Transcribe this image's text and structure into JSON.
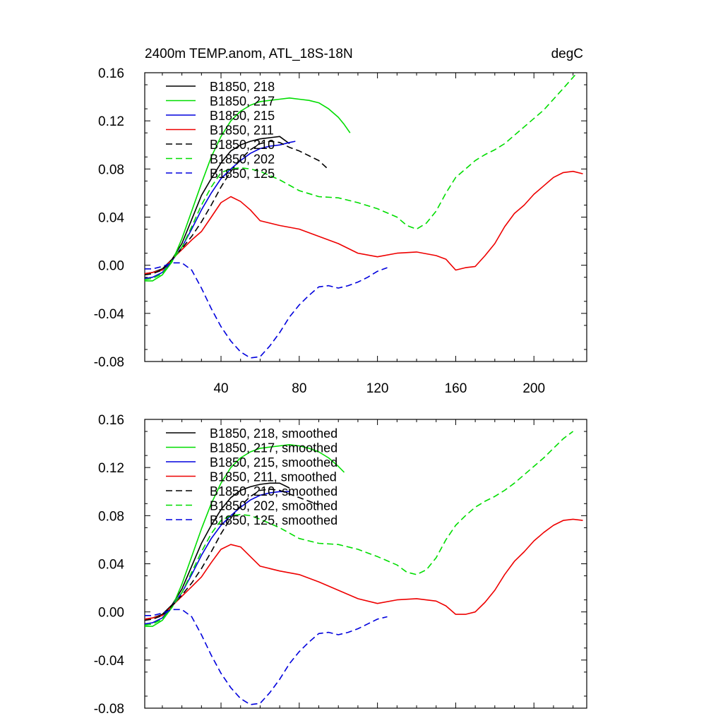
{
  "chart_data": [
    {
      "type": "line",
      "title": "2400m TEMP.anom, ATL_18S-18N",
      "units": "degC",
      "xlabel": "",
      "ylabel": "",
      "xlim": [
        1,
        227
      ],
      "ylim": [
        -0.08,
        0.16
      ],
      "xticks": [
        "40",
        "80",
        "120",
        "160",
        "200"
      ],
      "yticks": [
        "-0.08",
        "-0.04",
        "0.00",
        "0.04",
        "0.08",
        "0.12",
        "0.16"
      ],
      "grid": false,
      "legend_position": "top-left",
      "series": [
        {
          "name": "B1850, 218",
          "color": "#000000",
          "dash": "solid",
          "x": [
            1,
            5,
            10,
            15,
            20,
            25,
            30,
            35,
            40,
            45,
            50,
            55,
            60,
            65,
            70,
            75
          ],
          "y": [
            -0.007,
            -0.006,
            -0.003,
            0.005,
            0.018,
            0.038,
            0.058,
            0.072,
            0.085,
            0.095,
            0.1,
            0.103,
            0.105,
            0.106,
            0.107,
            0.101
          ]
        },
        {
          "name": "B1850, 217",
          "color": "#00dd00",
          "dash": "solid",
          "x": [
            1,
            5,
            10,
            15,
            20,
            25,
            30,
            35,
            40,
            45,
            50,
            55,
            60,
            65,
            70,
            75,
            80,
            85,
            90,
            95,
            100,
            103,
            106
          ],
          "y": [
            -0.013,
            -0.013,
            -0.008,
            0.003,
            0.022,
            0.045,
            0.068,
            0.09,
            0.107,
            0.12,
            0.128,
            0.133,
            0.136,
            0.137,
            0.138,
            0.139,
            0.138,
            0.137,
            0.135,
            0.13,
            0.123,
            0.117,
            0.11
          ]
        },
        {
          "name": "B1850, 215",
          "color": "#0000dd",
          "dash": "solid",
          "x": [
            1,
            5,
            10,
            15,
            20,
            25,
            30,
            35,
            40,
            45,
            50,
            55,
            60,
            65,
            70,
            75,
            78
          ],
          "y": [
            -0.011,
            -0.01,
            -0.006,
            0.004,
            0.015,
            0.03,
            0.046,
            0.06,
            0.072,
            0.08,
            0.087,
            0.093,
            0.097,
            0.099,
            0.1,
            0.102,
            0.103
          ]
        },
        {
          "name": "B1850, 211",
          "color": "#ee0000",
          "dash": "solid",
          "x": [
            1,
            5,
            10,
            15,
            20,
            25,
            30,
            35,
            40,
            45,
            50,
            55,
            60,
            70,
            80,
            90,
            100,
            110,
            120,
            130,
            140,
            150,
            155,
            160,
            165,
            170,
            175,
            180,
            185,
            190,
            195,
            200,
            205,
            210,
            215,
            220,
            225
          ],
          "y": [
            -0.007,
            -0.006,
            -0.004,
            0.005,
            0.013,
            0.021,
            0.028,
            0.04,
            0.052,
            0.057,
            0.053,
            0.046,
            0.037,
            0.033,
            0.03,
            0.024,
            0.018,
            0.01,
            0.007,
            0.01,
            0.011,
            0.008,
            0.005,
            -0.004,
            -0.002,
            -0.001,
            0.008,
            0.018,
            0.032,
            0.043,
            0.05,
            0.059,
            0.066,
            0.073,
            0.077,
            0.078,
            0.076
          ]
        },
        {
          "name": "B1850, 210",
          "color": "#000000",
          "dash": "dashed",
          "x": [
            1,
            5,
            10,
            15,
            20,
            25,
            30,
            35,
            40,
            45,
            50,
            55,
            60,
            65,
            70,
            75,
            80,
            85,
            90,
            94
          ],
          "y": [
            -0.008,
            -0.007,
            -0.004,
            0.005,
            0.014,
            0.024,
            0.036,
            0.05,
            0.065,
            0.078,
            0.088,
            0.096,
            0.101,
            0.103,
            0.102,
            0.098,
            0.095,
            0.091,
            0.087,
            0.081
          ]
        },
        {
          "name": "B1850, 202",
          "color": "#00dd00",
          "dash": "dashed",
          "x": [
            1,
            5,
            10,
            15,
            20,
            25,
            30,
            35,
            40,
            45,
            50,
            55,
            60,
            70,
            80,
            90,
            100,
            110,
            120,
            130,
            135,
            140,
            145,
            150,
            155,
            160,
            165,
            170,
            175,
            180,
            185,
            190,
            195,
            200,
            205,
            210,
            215,
            221
          ],
          "y": [
            -0.012,
            -0.011,
            -0.007,
            0.004,
            0.015,
            0.032,
            0.05,
            0.065,
            0.077,
            0.08,
            0.081,
            0.08,
            0.078,
            0.071,
            0.062,
            0.057,
            0.056,
            0.052,
            0.047,
            0.04,
            0.033,
            0.03,
            0.035,
            0.045,
            0.06,
            0.073,
            0.08,
            0.087,
            0.092,
            0.096,
            0.101,
            0.108,
            0.115,
            0.122,
            0.129,
            0.138,
            0.147,
            0.158
          ]
        },
        {
          "name": "B1850, 125",
          "color": "#0000dd",
          "dash": "dashed",
          "x": [
            1,
            5,
            10,
            15,
            20,
            25,
            30,
            35,
            40,
            45,
            50,
            55,
            60,
            65,
            70,
            75,
            80,
            85,
            90,
            95,
            100,
            105,
            110,
            115,
            120,
            125
          ],
          "y": [
            -0.003,
            -0.003,
            -0.001,
            0.002,
            0.002,
            -0.004,
            -0.019,
            -0.036,
            -0.051,
            -0.063,
            -0.072,
            -0.077,
            -0.076,
            -0.067,
            -0.056,
            -0.043,
            -0.033,
            -0.025,
            -0.018,
            -0.017,
            -0.019,
            -0.017,
            -0.014,
            -0.01,
            -0.005,
            -0.002
          ]
        }
      ]
    },
    {
      "type": "line",
      "title": "",
      "units": "",
      "xlabel": "",
      "ylabel": "",
      "xlim": [
        1,
        227
      ],
      "ylim": [
        -0.08,
        0.16
      ],
      "xticks": [],
      "yticks": [
        "-0.08",
        "-0.04",
        "0.00",
        "0.04",
        "0.08",
        "0.12",
        "0.16"
      ],
      "grid": false,
      "legend_position": "top-left",
      "series": [
        {
          "name": "B1850, 218, smoothed",
          "color": "#000000",
          "dash": "solid",
          "x": [
            1,
            5,
            10,
            15,
            20,
            25,
            30,
            35,
            40,
            45,
            50,
            55,
            60,
            65,
            70,
            75
          ],
          "y": [
            -0.006,
            -0.005,
            -0.002,
            0.006,
            0.019,
            0.038,
            0.057,
            0.072,
            0.085,
            0.095,
            0.101,
            0.104,
            0.106,
            0.107,
            0.107,
            0.103
          ]
        },
        {
          "name": "B1850, 217, smoothed",
          "color": "#00dd00",
          "dash": "solid",
          "x": [
            1,
            5,
            10,
            15,
            20,
            25,
            30,
            35,
            40,
            45,
            50,
            55,
            60,
            65,
            70,
            75,
            80,
            85,
            90,
            95,
            100,
            103
          ],
          "y": [
            -0.012,
            -0.012,
            -0.007,
            0.004,
            0.023,
            0.046,
            0.069,
            0.09,
            0.107,
            0.12,
            0.128,
            0.133,
            0.136,
            0.137,
            0.138,
            0.139,
            0.138,
            0.136,
            0.133,
            0.128,
            0.121,
            0.116
          ]
        },
        {
          "name": "B1850, 215, smoothed",
          "color": "#0000dd",
          "dash": "solid",
          "x": [
            1,
            5,
            10,
            15,
            20,
            25,
            30,
            35,
            40,
            45,
            50,
            55,
            60,
            65,
            70,
            75
          ],
          "y": [
            -0.01,
            -0.009,
            -0.005,
            0.005,
            0.016,
            0.031,
            0.047,
            0.061,
            0.072,
            0.08,
            0.087,
            0.093,
            0.097,
            0.099,
            0.1,
            0.1
          ]
        },
        {
          "name": "B1850, 211, smoothed",
          "color": "#ee0000",
          "dash": "solid",
          "x": [
            1,
            5,
            10,
            15,
            20,
            25,
            30,
            35,
            40,
            45,
            50,
            55,
            60,
            70,
            80,
            90,
            100,
            110,
            120,
            130,
            140,
            150,
            155,
            160,
            165,
            170,
            175,
            180,
            185,
            190,
            195,
            200,
            205,
            210,
            215,
            220,
            225
          ],
          "y": [
            -0.006,
            -0.005,
            -0.003,
            0.005,
            0.013,
            0.021,
            0.029,
            0.041,
            0.052,
            0.056,
            0.054,
            0.046,
            0.038,
            0.034,
            0.031,
            0.025,
            0.018,
            0.011,
            0.007,
            0.01,
            0.011,
            0.009,
            0.005,
            -0.002,
            -0.002,
            0.0,
            0.008,
            0.018,
            0.031,
            0.042,
            0.05,
            0.059,
            0.066,
            0.072,
            0.076,
            0.077,
            0.076
          ]
        },
        {
          "name": "B1850, 210, smoothed",
          "color": "#000000",
          "dash": "dashed",
          "x": [
            1,
            5,
            10,
            15,
            20,
            25,
            30,
            35,
            40,
            45,
            50,
            55,
            60,
            65,
            70,
            75,
            80,
            85,
            90
          ],
          "y": [
            -0.007,
            -0.006,
            -0.003,
            0.005,
            0.014,
            0.024,
            0.036,
            0.05,
            0.065,
            0.078,
            0.088,
            0.096,
            0.101,
            0.102,
            0.101,
            0.098,
            0.095,
            0.092,
            0.089
          ]
        },
        {
          "name": "B1850, 202, smoothed",
          "color": "#00dd00",
          "dash": "dashed",
          "x": [
            1,
            5,
            10,
            15,
            20,
            25,
            30,
            35,
            40,
            45,
            50,
            55,
            60,
            70,
            80,
            90,
            100,
            110,
            120,
            130,
            135,
            140,
            145,
            150,
            155,
            160,
            165,
            170,
            175,
            180,
            185,
            190,
            195,
            200,
            205,
            210,
            215,
            220
          ],
          "y": [
            -0.011,
            -0.01,
            -0.006,
            0.004,
            0.016,
            0.033,
            0.05,
            0.065,
            0.076,
            0.08,
            0.081,
            0.08,
            0.077,
            0.07,
            0.061,
            0.057,
            0.056,
            0.052,
            0.046,
            0.039,
            0.033,
            0.031,
            0.035,
            0.045,
            0.06,
            0.072,
            0.08,
            0.087,
            0.092,
            0.096,
            0.101,
            0.107,
            0.114,
            0.121,
            0.128,
            0.136,
            0.144,
            0.15
          ]
        },
        {
          "name": "B1850, 125, smoothed",
          "color": "#0000dd",
          "dash": "dashed",
          "x": [
            1,
            5,
            10,
            15,
            20,
            25,
            30,
            35,
            40,
            45,
            50,
            55,
            60,
            65,
            70,
            75,
            80,
            85,
            90,
            95,
            100,
            105,
            110,
            115,
            120,
            125
          ],
          "y": [
            -0.003,
            -0.003,
            -0.001,
            0.002,
            0.002,
            -0.004,
            -0.019,
            -0.036,
            -0.051,
            -0.063,
            -0.072,
            -0.077,
            -0.076,
            -0.067,
            -0.056,
            -0.043,
            -0.033,
            -0.025,
            -0.018,
            -0.017,
            -0.019,
            -0.017,
            -0.014,
            -0.01,
            -0.006,
            -0.004
          ]
        }
      ]
    }
  ]
}
